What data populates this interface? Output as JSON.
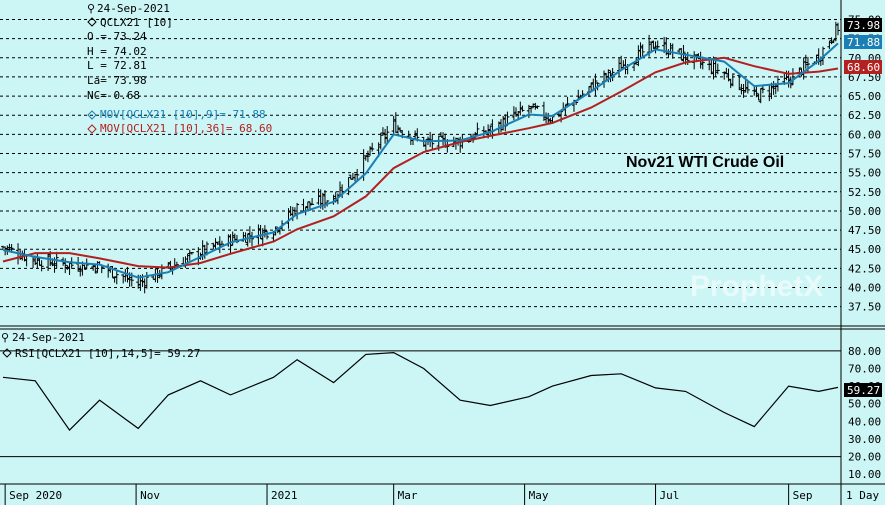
{
  "colors": {
    "background": "#ccf5f5",
    "bars": "#000000",
    "ma_fast": "#1a7fb5",
    "ma_slow": "#b32020",
    "grid": "#000000"
  },
  "price_panel": {
    "date": "24-Sep-2021",
    "symbol": "QCLX21 [10]",
    "open": "O = 73.24",
    "high": "H = 74.02",
    "low": "L = 72.81",
    "last": "La= 73.98",
    "net_change": "NC= 0.68",
    "ma_fast_label": "MOV[QCLX21 [10],9]= 71.88",
    "ma_slow_label": "MOV[QCLX21 [10],36]= 68.60",
    "title": "Nov21 WTI Crude Oil",
    "watermark": "ProphetX",
    "badges": {
      "last": "73.98",
      "ma_fast": "71.88",
      "ma_slow": "68.60"
    }
  },
  "rsi_panel": {
    "date": "24-Sep-2021",
    "label": "RSI[QCLX21 [10],14,5]= 59.27",
    "badge": "59.27"
  },
  "x_axis": {
    "labels": [
      "Sep 2020",
      "Nov",
      "2021",
      "Mar",
      "May",
      "Jul",
      "Sep"
    ],
    "period": "1 Day"
  },
  "chart_data": [
    {
      "type": "ohlc",
      "title": "Nov21 WTI Crude Oil",
      "y_ticks": [
        "37.50",
        "40.00",
        "42.50",
        "45.00",
        "47.50",
        "50.00",
        "52.50",
        "55.00",
        "57.50",
        "60.00",
        "62.50",
        "65.00",
        "67.50",
        "70.00",
        "72.50",
        "75.00"
      ],
      "ylim": [
        35.5,
        76.5
      ],
      "x": [
        "2020-08-31",
        "2020-09-15",
        "2020-10-01",
        "2020-10-15",
        "2020-11-02",
        "2020-11-16",
        "2020-12-01",
        "2020-12-15",
        "2021-01-04",
        "2021-01-15",
        "2021-02-01",
        "2021-02-16",
        "2021-03-01",
        "2021-03-15",
        "2021-04-01",
        "2021-04-15",
        "2021-05-03",
        "2021-05-14",
        "2021-06-01",
        "2021-06-15",
        "2021-07-01",
        "2021-07-15",
        "2021-08-02",
        "2021-08-16",
        "2021-09-01",
        "2021-09-15",
        "2021-09-24"
      ],
      "series": [
        {
          "name": "QCLX21 [10]",
          "values": [
            45.3,
            43.6,
            43.0,
            42.8,
            40.5,
            42.6,
            44.6,
            46.2,
            47.6,
            50.4,
            51.8,
            56.8,
            61.2,
            58.9,
            59.1,
            60.6,
            63.4,
            62.1,
            66.2,
            68.9,
            71.8,
            70.1,
            68.0,
            64.9,
            67.1,
            70.2,
            73.98
          ]
        },
        {
          "name": "MOV[QCLX21 [10],9]",
          "values": [
            44.9,
            44.0,
            43.3,
            43.0,
            41.3,
            42.0,
            44.0,
            45.9,
            47.2,
            49.6,
            51.2,
            54.9,
            60.0,
            59.1,
            59.2,
            60.3,
            62.6,
            62.4,
            65.6,
            68.4,
            71.1,
            70.4,
            69.5,
            66.3,
            66.7,
            69.6,
            71.88
          ]
        },
        {
          "name": "MOV[QCLX21 [10],36]",
          "values": [
            43.4,
            44.5,
            44.5,
            43.8,
            42.8,
            42.6,
            43.2,
            44.4,
            46.0,
            47.6,
            49.3,
            51.9,
            55.6,
            57.7,
            59.0,
            59.8,
            60.8,
            61.5,
            63.5,
            65.6,
            68.1,
            69.4,
            70.0,
            68.9,
            67.9,
            68.2,
            68.6
          ]
        }
      ]
    },
    {
      "type": "line",
      "title": "",
      "y_ticks": [
        "10.00",
        "20.00",
        "30.00",
        "40.00",
        "50.00",
        "60.00",
        "70.00",
        "80.00"
      ],
      "ylim": [
        5,
        89
      ],
      "x": [
        "2020-08-31",
        "2020-09-15",
        "2020-10-01",
        "2020-10-15",
        "2020-11-02",
        "2020-11-16",
        "2020-12-01",
        "2020-12-15",
        "2021-01-04",
        "2021-01-15",
        "2021-02-01",
        "2021-02-16",
        "2021-03-01",
        "2021-03-15",
        "2021-04-01",
        "2021-04-15",
        "2021-05-03",
        "2021-05-14",
        "2021-06-01",
        "2021-06-15",
        "2021-07-01",
        "2021-07-15",
        "2021-08-02",
        "2021-08-16",
        "2021-09-01",
        "2021-09-15",
        "2021-09-24"
      ],
      "series": [
        {
          "name": "RSI[QCLX21 [10],14,5]",
          "values": [
            65,
            63,
            35,
            52,
            36,
            55,
            63,
            55,
            65,
            75,
            62,
            78,
            79,
            70,
            52,
            49,
            54,
            60,
            66,
            67,
            59,
            57,
            45,
            37,
            60,
            57,
            59.27
          ]
        }
      ],
      "reference_lines": [
        80,
        20
      ]
    }
  ]
}
